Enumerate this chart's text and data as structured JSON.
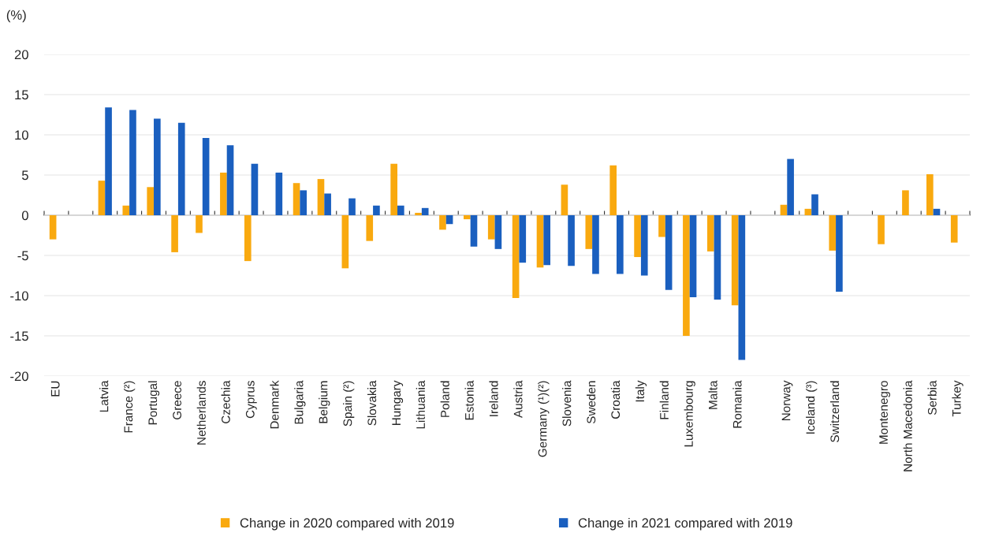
{
  "chart_data": {
    "type": "bar",
    "ylabel": "(%)",
    "categories": [
      "EU",
      null,
      "Latvia",
      "France (²)",
      "Portugal",
      "Greece",
      "Netherlands",
      "Czechia",
      "Cyprus",
      "Denmark",
      "Bulgaria",
      "Belgium",
      "Spain (²)",
      "Slovakia",
      "Hungary",
      "Lithuania",
      "Poland",
      "Estonia",
      "Ireland",
      "Austria",
      "Germany (¹)(²)",
      "Slovenia",
      "Sweden",
      "Croatia",
      "Italy",
      "Finland",
      "Luxembourg",
      "Malta",
      "Romania",
      null,
      "Norway",
      "Iceland (³)",
      "Switzerland",
      null,
      "Montenegro",
      "North Macedonia",
      "Serbia",
      "Turkey"
    ],
    "series": [
      {
        "name": "Change in 2020 compared with 2019",
        "color": "#f9a90f",
        "values": [
          -3.0,
          null,
          4.3,
          1.2,
          3.5,
          -4.6,
          -2.2,
          5.3,
          -5.7,
          null,
          4.0,
          4.5,
          -6.6,
          -3.2,
          6.4,
          0.3,
          -1.8,
          -0.5,
          -3.0,
          -10.3,
          -6.5,
          3.8,
          -4.2,
          6.2,
          -5.2,
          -2.7,
          -15.0,
          -4.5,
          -11.2,
          null,
          1.3,
          0.8,
          -4.4,
          null,
          -3.6,
          3.1,
          5.1,
          -3.4
        ]
      },
      {
        "name": "Change in 2021 compared with 2019",
        "color": "#1a5fbf",
        "values": [
          null,
          null,
          13.4,
          13.1,
          12.0,
          11.5,
          9.6,
          8.7,
          6.4,
          5.3,
          3.1,
          2.7,
          2.1,
          1.2,
          1.2,
          0.9,
          -1.1,
          -3.9,
          -4.2,
          -5.9,
          -6.2,
          -6.3,
          -7.3,
          -7.3,
          -7.5,
          -9.3,
          -10.2,
          -10.5,
          -18.0,
          null,
          7.0,
          2.6,
          -9.5,
          null,
          null,
          null,
          0.8,
          null
        ]
      }
    ],
    "ylim": [
      -20,
      20
    ],
    "yticks": [
      -20,
      -15,
      -10,
      -5,
      0,
      5,
      10,
      15,
      20
    ],
    "grid": "y",
    "legend": "bottom"
  }
}
